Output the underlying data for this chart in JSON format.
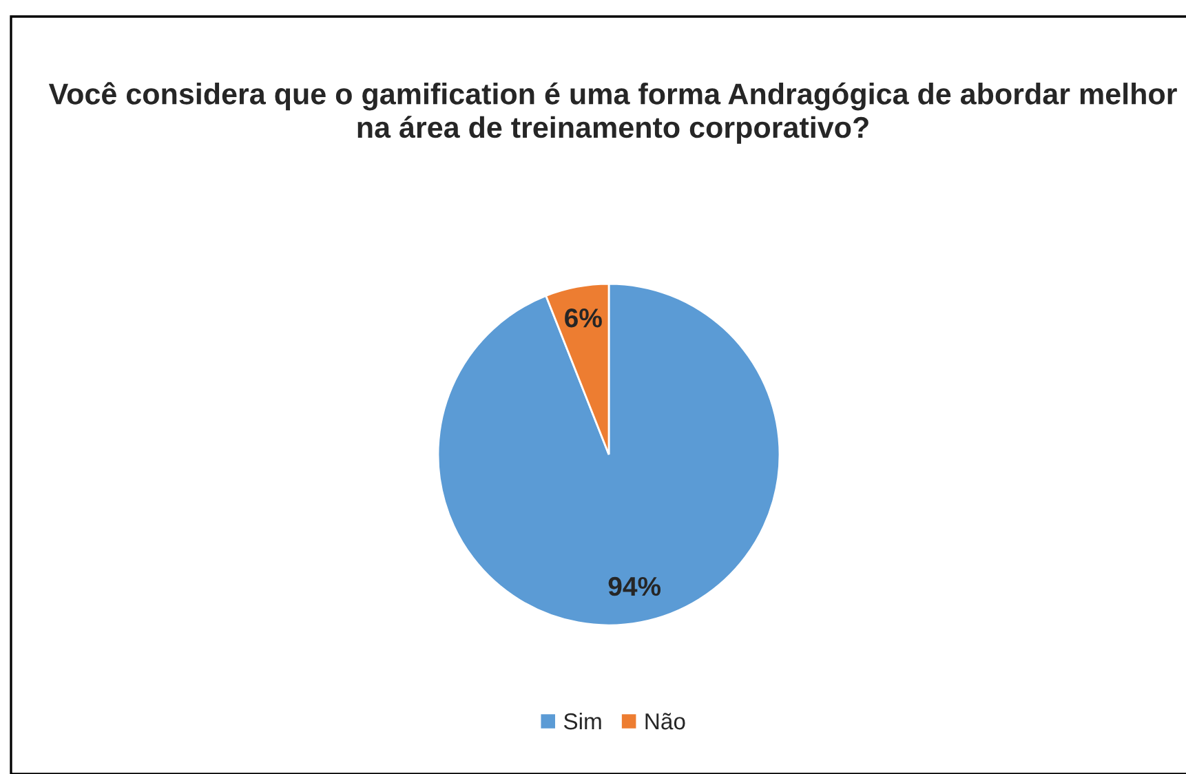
{
  "chart_data": {
    "type": "pie",
    "title": "Você considera que o gamification é uma forma Andragógica de abordar melhor na área de treinamento corporativo?",
    "categories": [
      "Sim",
      "Não"
    ],
    "values": [
      94,
      6
    ],
    "colors": [
      "#5b9bd5",
      "#ed7d31"
    ],
    "value_labels": [
      "94%",
      "6%"
    ],
    "legend": "bottom"
  }
}
